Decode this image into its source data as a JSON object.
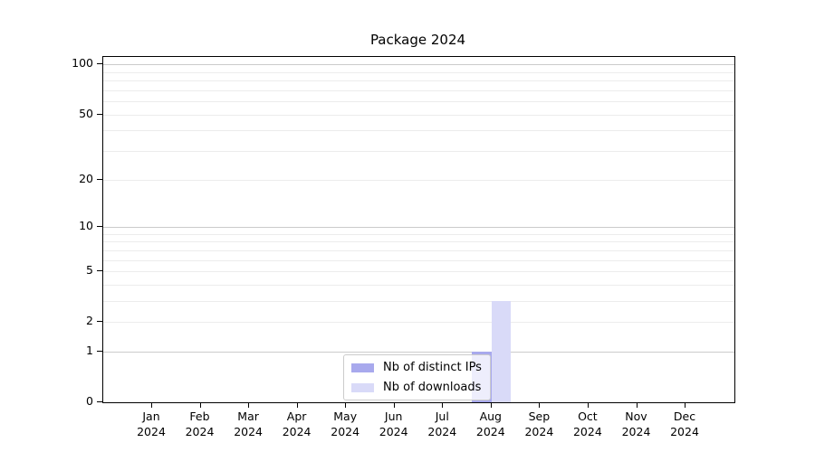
{
  "title": "Package 2024",
  "chart_data": {
    "type": "bar",
    "title": "Package 2024",
    "categories": [
      "Jan",
      "Feb",
      "Mar",
      "Apr",
      "May",
      "Jun",
      "Jul",
      "Aug",
      "Sep",
      "Oct",
      "Nov",
      "Dec"
    ],
    "category_year": "2024",
    "series": [
      {
        "name": "Nb of distinct IPs",
        "color": "#a8a9ed",
        "values": [
          0,
          0,
          0,
          0,
          0,
          0,
          0,
          1,
          0,
          0,
          0,
          0
        ]
      },
      {
        "name": "Nb of downloads",
        "color": "#d9daf8",
        "values": [
          0,
          0,
          0,
          0,
          0,
          0,
          0,
          3,
          0,
          0,
          0,
          0
        ]
      }
    ],
    "y_ticks": [
      0,
      1,
      2,
      5,
      10,
      20,
      50,
      100
    ],
    "y_scale": "log1p",
    "y_max": 111,
    "ylim": [
      0,
      111
    ],
    "grid": "on",
    "grid_major_values": [
      1,
      10,
      100
    ],
    "grid_minor_values": [
      2,
      3,
      4,
      5,
      6,
      7,
      8,
      9,
      20,
      30,
      40,
      50,
      60,
      70,
      80,
      90
    ],
    "legend_position": "lower center",
    "colors": {
      "grid_major": "#cbcbcb",
      "grid_minor": "#ececec",
      "spine": "#000000",
      "background": "#ffffff"
    }
  }
}
